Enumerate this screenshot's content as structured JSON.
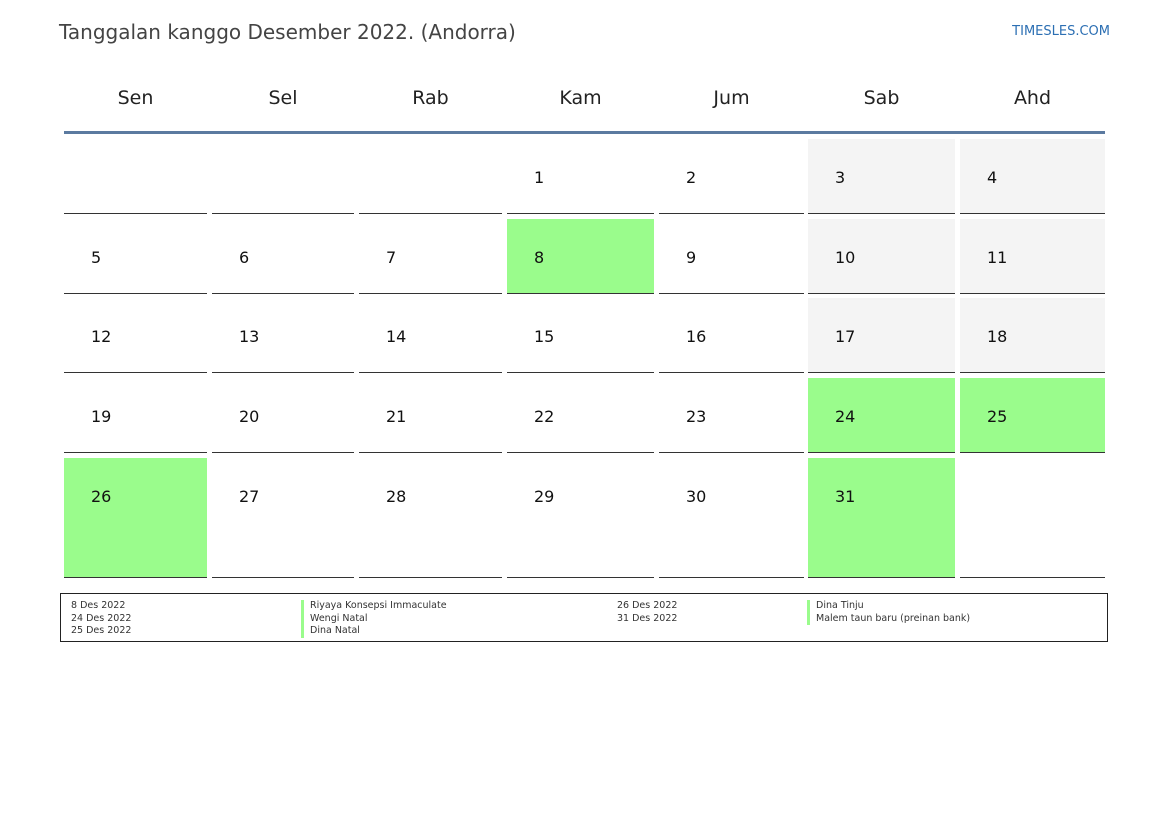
{
  "header": {
    "title": "Tanggalan kanggo Desember 2022. (Andorra)",
    "site": "TIMESLES.COM"
  },
  "colors": {
    "holiday": "#9afc8c",
    "weekend": "#f4f4f4",
    "rule": "#5b7aa0",
    "link": "#2c6fb3"
  },
  "weekdays": [
    "Sen",
    "Sel",
    "Rab",
    "Kam",
    "Jum",
    "Sab",
    "Ahd"
  ],
  "weeks": [
    [
      "",
      "",
      "",
      "1",
      "2",
      "3",
      "4"
    ],
    [
      "5",
      "6",
      "7",
      "8",
      "9",
      "10",
      "11"
    ],
    [
      "12",
      "13",
      "14",
      "15",
      "16",
      "17",
      "18"
    ],
    [
      "19",
      "20",
      "21",
      "22",
      "23",
      "24",
      "25"
    ],
    [
      "26",
      "27",
      "28",
      "29",
      "30",
      "31",
      ""
    ]
  ],
  "holiday_days": [
    "8",
    "24",
    "25",
    "26",
    "31"
  ],
  "legend": {
    "left": [
      {
        "date": "8 Des 2022",
        "name": "Riyaya Konsepsi Immaculate"
      },
      {
        "date": "24 Des 2022",
        "name": "Wengi Natal"
      },
      {
        "date": "25 Des 2022",
        "name": "Dina Natal"
      }
    ],
    "right": [
      {
        "date": "26 Des 2022",
        "name": "Dina Tinju"
      },
      {
        "date": "31 Des 2022",
        "name": "Malem taun baru (preinan bank)"
      }
    ]
  }
}
